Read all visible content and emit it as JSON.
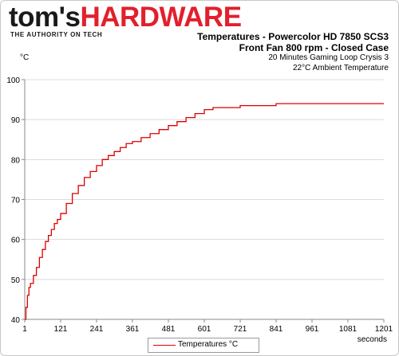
{
  "logo": {
    "toms": "tom's",
    "hardware": "HARDWARE",
    "tagline": "THE AUTHORITY ON TECH"
  },
  "colors": {
    "series": "#dd0000",
    "grid": "#dcdcdc",
    "brand_red": "#e2202c"
  },
  "chart_data": {
    "type": "line",
    "title": "Temperatures - Powercolor HD 7850 SCS3",
    "subtitle_lines": [
      "Front Fan 800 rpm - Closed Case",
      "20 Minutes Gaming Loop Crysis 3",
      "22°C Ambient Temperature"
    ],
    "ylabel": "°C",
    "xlabel": "seconds",
    "ylim": [
      40,
      100
    ],
    "xlim": [
      1,
      1201
    ],
    "yticks": [
      40,
      50,
      60,
      70,
      80,
      90,
      100
    ],
    "xticks": [
      1,
      121,
      241,
      361,
      481,
      601,
      721,
      841,
      961,
      1081,
      1201
    ],
    "grid": "horizontal",
    "legend_position": "bottom",
    "series": [
      {
        "name": "Temperatures °C",
        "x": [
          1,
          5,
          10,
          15,
          20,
          30,
          40,
          50,
          60,
          70,
          80,
          90,
          100,
          110,
          121,
          140,
          160,
          180,
          200,
          220,
          241,
          260,
          280,
          300,
          320,
          340,
          361,
          390,
          420,
          450,
          481,
          510,
          540,
          570,
          601,
          630,
          660,
          690,
          721,
          760,
          800,
          841,
          900,
          961,
          1020,
          1081,
          1140,
          1201
        ],
        "y": [
          40,
          43,
          46,
          48,
          49,
          51,
          53,
          55.5,
          57.5,
          59.5,
          61,
          62.5,
          64,
          65,
          66.5,
          69,
          71.5,
          73.5,
          75.5,
          77,
          78.5,
          80,
          81,
          82,
          83,
          84,
          84.5,
          85.5,
          86.5,
          87.5,
          88.5,
          89.5,
          90.5,
          91.5,
          92.5,
          93,
          93,
          93,
          93.5,
          93.5,
          93.5,
          94,
          94,
          94,
          94,
          94,
          94,
          94
        ]
      }
    ]
  }
}
